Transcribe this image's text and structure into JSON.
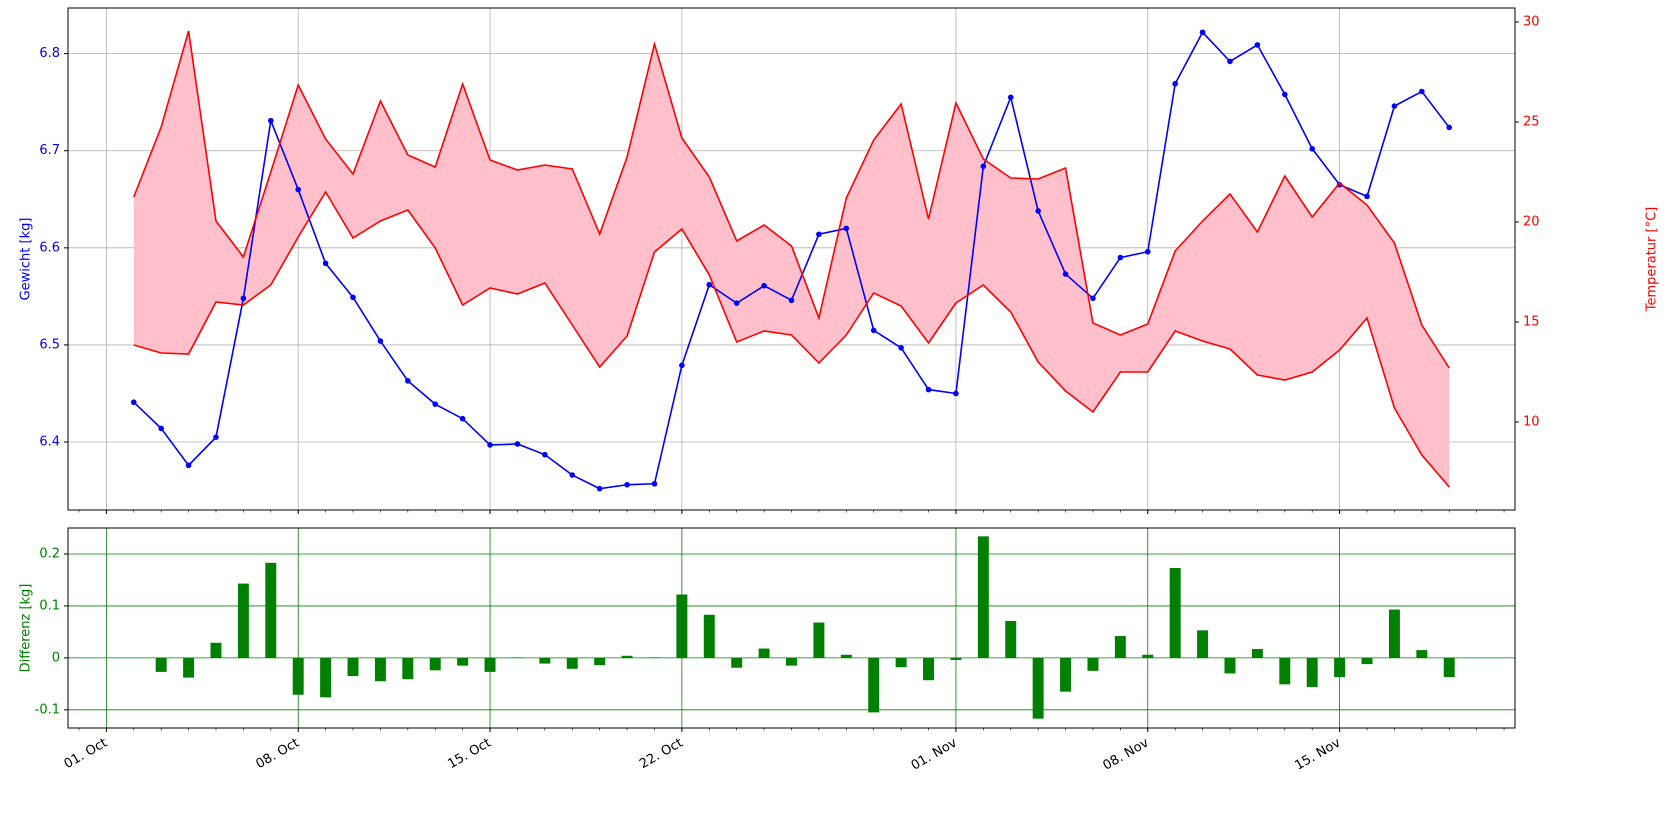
{
  "chart_data": [
    {
      "type": "line",
      "x": [
        "10-02",
        "10-03",
        "10-04",
        "10-05",
        "10-06",
        "10-07",
        "10-08",
        "10-09",
        "10-10",
        "10-11",
        "10-12",
        "10-13",
        "10-14",
        "10-15",
        "10-16",
        "10-17",
        "10-18",
        "10-19",
        "10-20",
        "10-21",
        "10-22",
        "10-23",
        "10-24",
        "10-25",
        "10-26",
        "10-27",
        "10-28",
        "10-29",
        "10-30",
        "10-31",
        "11-01",
        "11-02",
        "11-03",
        "11-04",
        "11-05",
        "11-06",
        "11-07",
        "11-08",
        "11-09",
        "11-10",
        "11-11",
        "11-12",
        "11-13",
        "11-14",
        "11-15",
        "11-16",
        "11-17",
        "11-18",
        "11-19"
      ],
      "ylabel": "Gewicht [kg]",
      "y2label": "Temperatur [°C]",
      "ylim": [
        6.33,
        6.847
      ],
      "yticks": [
        6.4,
        6.5,
        6.6,
        6.7,
        6.8
      ],
      "y2lim": [
        5.6,
        30.7
      ],
      "y2ticks": [
        10,
        15,
        20,
        25,
        30
      ],
      "xticks": [
        "10-01",
        "10-08",
        "10-15",
        "10-22",
        "11-01",
        "11-08",
        "11-15"
      ],
      "grid": true,
      "fill_color": "pink",
      "series": [
        {
          "color": "blue",
          "axis": "y",
          "values": [
            6.441,
            6.414,
            6.376,
            6.405,
            6.548,
            6.731,
            6.66,
            6.584,
            6.549,
            6.504,
            6.463,
            6.439,
            6.424,
            6.397,
            6.398,
            6.387,
            6.366,
            6.352,
            6.356,
            6.357,
            6.479,
            6.562,
            6.543,
            6.561,
            6.546,
            6.614,
            6.62,
            6.515,
            6.497,
            6.454,
            6.45,
            6.684,
            6.755,
            6.638,
            6.573,
            6.548,
            6.59,
            6.596,
            6.769,
            6.822,
            6.792,
            6.809,
            6.758,
            6.702,
            6.665,
            6.653,
            6.746,
            6.761,
            6.724
          ]
        },
        {
          "color": "red",
          "axis": "y2",
          "values": [
            21.25,
            24.75,
            29.55,
            20.05,
            18.25,
            22.5,
            26.85,
            24.15,
            22.4,
            26.05,
            23.35,
            22.75,
            26.9,
            23.1,
            22.6,
            22.85,
            22.65,
            19.4,
            23.25,
            28.9,
            24.2,
            22.25,
            19.05,
            19.85,
            18.8,
            15.2,
            21.2,
            24.1,
            25.9,
            20.15,
            25.95,
            23.15,
            22.2,
            22.15,
            22.7,
            14.95,
            14.35,
            14.9,
            18.55,
            20.05,
            21.4,
            19.5,
            22.3,
            20.25,
            21.95,
            20.85,
            18.95,
            14.85,
            12.7
          ]
        },
        {
          "color": "red",
          "axis": "y2",
          "values": [
            13.85,
            13.45,
            13.4,
            16.0,
            15.85,
            16.85,
            19.25,
            21.5,
            19.2,
            20.05,
            20.6,
            18.7,
            15.85,
            16.7,
            16.4,
            16.95,
            14.85,
            12.75,
            14.3,
            18.5,
            19.65,
            17.35,
            14.0,
            14.55,
            14.35,
            12.95,
            14.35,
            16.45,
            15.8,
            13.95,
            15.95,
            16.85,
            15.5,
            13.0,
            11.55,
            10.5,
            12.5,
            12.5,
            14.55,
            14.05,
            13.65,
            12.35,
            12.1,
            12.5,
            13.6,
            15.2,
            10.7,
            8.35,
            6.75
          ]
        }
      ]
    },
    {
      "type": "bar",
      "x": [
        "10-02",
        "10-03",
        "10-04",
        "10-05",
        "10-06",
        "10-07",
        "10-08",
        "10-09",
        "10-10",
        "10-11",
        "10-12",
        "10-13",
        "10-14",
        "10-15",
        "10-16",
        "10-17",
        "10-18",
        "10-19",
        "10-20",
        "10-21",
        "10-22",
        "10-23",
        "10-24",
        "10-25",
        "10-26",
        "10-27",
        "10-28",
        "10-29",
        "10-30",
        "10-31",
        "11-01",
        "11-02",
        "11-03",
        "11-04",
        "11-05",
        "11-06",
        "11-07",
        "11-08",
        "11-09",
        "11-10",
        "11-11",
        "11-12",
        "11-13",
        "11-14",
        "11-15",
        "11-16",
        "11-17",
        "11-18",
        "11-19"
      ],
      "ylabel": "Differenz [kg]",
      "color": "green",
      "grid": true,
      "ylim": [
        -0.135,
        0.25
      ],
      "yticks": [
        -0.1,
        0.0,
        0.1,
        0.2
      ],
      "xticks": [
        {
          "value": "10-01",
          "label": "01. Oct"
        },
        {
          "value": "10-08",
          "label": "08. Oct"
        },
        {
          "value": "10-15",
          "label": "15. Oct"
        },
        {
          "value": "10-22",
          "label": "22. Oct"
        },
        {
          "value": "11-01",
          "label": "01. Nov"
        },
        {
          "value": "11-08",
          "label": "08. Nov"
        },
        {
          "value": "11-15",
          "label": "15. Nov"
        }
      ],
      "values": [
        null,
        -0.027,
        -0.038,
        0.029,
        0.143,
        0.183,
        -0.071,
        -0.076,
        -0.035,
        -0.045,
        -0.041,
        -0.024,
        -0.015,
        -0.027,
        0.001,
        -0.011,
        -0.021,
        -0.014,
        0.004,
        0.001,
        0.122,
        0.083,
        -0.019,
        0.018,
        -0.015,
        0.068,
        0.006,
        -0.105,
        -0.018,
        -0.043,
        -0.004,
        0.234,
        0.071,
        -0.117,
        -0.065,
        -0.025,
        0.042,
        0.006,
        0.173,
        0.053,
        -0.03,
        0.017,
        -0.051,
        -0.056,
        -0.037,
        -0.012,
        0.093,
        0.015,
        -0.037
      ]
    }
  ]
}
